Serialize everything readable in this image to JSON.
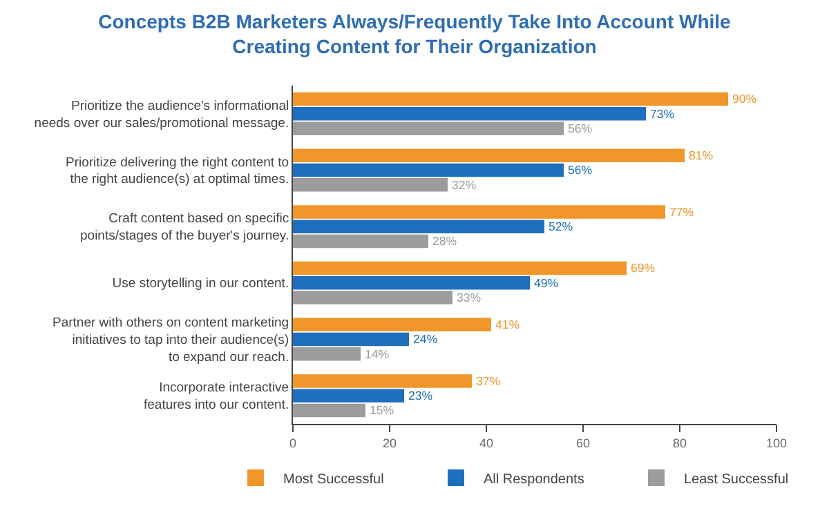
{
  "chart_data": {
    "type": "bar",
    "orientation": "horizontal",
    "title": "Concepts B2B Marketers Always/Frequently Take Into Account While\nCreating Content for Their Organization",
    "categories": [
      "Prioritize the audience's informational\nneeds over our sales/promotional message.",
      "Prioritize delivering the right content to\nthe right audience(s) at optimal times.",
      "Craft content based on specific\npoints/stages of the buyer's journey.",
      "Use storytelling in our content.",
      "Partner with others on content marketing\ninitiatives to tap into their audience(s)\nto expand our reach.",
      "Incorporate interactive\nfeatures into our content."
    ],
    "series": [
      {
        "name": "Most Successful",
        "color": "#f0962a",
        "values": [
          90,
          81,
          77,
          69,
          41,
          37
        ],
        "value_labels": [
          "90%",
          "81%",
          "77%",
          "69%",
          "41%",
          "37%"
        ]
      },
      {
        "name": "All Respondents",
        "color": "#1f6fbf",
        "values": [
          73,
          56,
          52,
          49,
          24,
          23
        ],
        "value_labels": [
          "73%",
          "56%",
          "52%",
          "49%",
          "24%",
          "23%"
        ]
      },
      {
        "name": "Least Successful",
        "color": "#9c9c9c",
        "values": [
          56,
          32,
          28,
          33,
          14,
          15
        ],
        "value_labels": [
          "56%",
          "32%",
          "28%",
          "33%",
          "14%",
          "15%"
        ]
      }
    ],
    "xlim": [
      0,
      100
    ],
    "xticks": [
      0,
      20,
      40,
      60,
      80,
      100
    ],
    "grid": false,
    "legend": "bottom"
  }
}
